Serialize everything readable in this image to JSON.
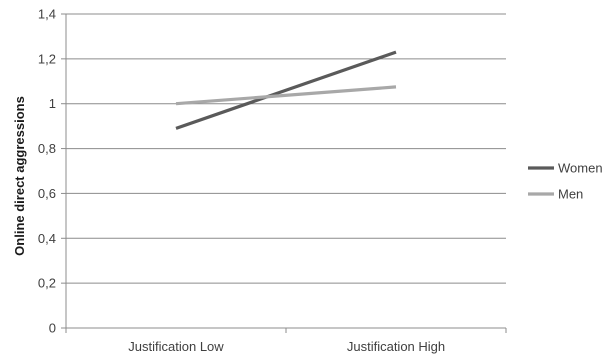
{
  "chart_data": {
    "type": "line",
    "categories": [
      "Justification Low",
      "Justification High"
    ],
    "series": [
      {
        "name": "Women",
        "values": [
          0.89,
          1.23
        ],
        "color": "#5a5a5a"
      },
      {
        "name": "Men",
        "values": [
          1.0,
          1.075
        ],
        "color": "#a8a8a8"
      }
    ],
    "ylabel": "Online direct aggressions",
    "xlabel": "",
    "ylim": [
      0,
      1.4
    ],
    "yticks": [
      "0",
      "0,2",
      "0,4",
      "0,6",
      "0,8",
      "1",
      "1,2",
      "1,4"
    ],
    "grid": true,
    "legend_position": "right"
  }
}
